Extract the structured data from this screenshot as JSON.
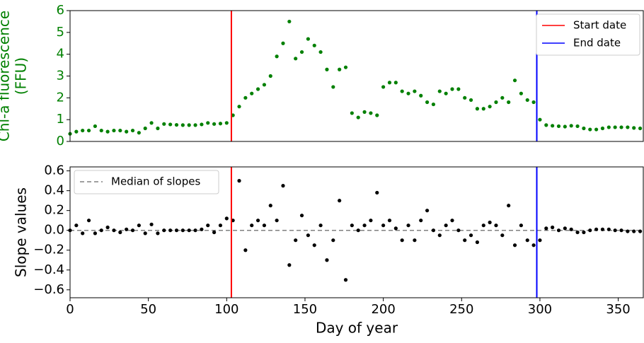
{
  "chart_data": [
    {
      "type": "scatter",
      "y_label": [
        "Chl-a fluorescence",
        "(FFU)"
      ],
      "label_color": "green",
      "xlim": [
        0,
        366
      ],
      "ylim": [
        0,
        6
      ],
      "yticks": [
        0,
        1,
        2,
        3,
        4,
        5,
        6
      ],
      "legend": "upper right",
      "vlines": [
        {
          "name": "Start date",
          "color": "red",
          "value": 103
        },
        {
          "name": "End date",
          "color": "blue",
          "value": 298
        }
      ],
      "x": [
        0,
        4,
        8,
        12,
        16,
        20,
        24,
        28,
        32,
        36,
        40,
        44,
        48,
        52,
        56,
        60,
        64,
        68,
        72,
        76,
        80,
        84,
        88,
        92,
        96,
        100,
        104,
        108,
        112,
        116,
        120,
        124,
        128,
        132,
        136,
        140,
        144,
        148,
        152,
        156,
        160,
        164,
        168,
        172,
        176,
        180,
        184,
        188,
        192,
        196,
        200,
        204,
        208,
        212,
        216,
        220,
        224,
        228,
        232,
        236,
        240,
        244,
        248,
        252,
        256,
        260,
        264,
        268,
        272,
        276,
        280,
        284,
        288,
        292,
        296,
        300,
        304,
        308,
        312,
        316,
        320,
        324,
        328,
        332,
        336,
        340,
        344,
        348,
        352,
        356,
        360,
        364
      ],
      "series": [
        {
          "color": "green",
          "values": [
            0.35,
            0.45,
            0.5,
            0.5,
            0.7,
            0.5,
            0.45,
            0.5,
            0.5,
            0.45,
            0.5,
            0.4,
            0.6,
            0.85,
            0.6,
            0.8,
            0.78,
            0.76,
            0.75,
            0.75,
            0.75,
            0.78,
            0.85,
            0.8,
            0.82,
            0.85,
            1.2,
            1.6,
            2.0,
            2.2,
            2.4,
            2.6,
            3.0,
            3.9,
            4.5,
            5.5,
            3.8,
            4.1,
            4.7,
            4.4,
            4.1,
            3.3,
            2.5,
            3.3,
            3.4,
            1.3,
            1.1,
            1.35,
            1.3,
            1.2,
            2.5,
            2.7,
            2.7,
            2.3,
            2.2,
            2.3,
            2.1,
            1.8,
            1.7,
            2.3,
            2.2,
            2.4,
            2.4,
            2.0,
            1.9,
            1.5,
            1.5,
            1.6,
            1.8,
            2.0,
            1.8,
            2.8,
            2.2,
            1.9,
            1.8,
            1.0,
            0.75,
            0.72,
            0.7,
            0.68,
            0.72,
            0.7,
            0.6,
            0.55,
            0.55,
            0.6,
            0.65,
            0.65,
            0.65,
            0.65,
            0.62,
            0.6
          ]
        }
      ]
    },
    {
      "type": "scatter",
      "y_label": [
        "Slope values"
      ],
      "x_label": "Day of year",
      "xlim": [
        0,
        366
      ],
      "xticks": [
        0,
        50,
        100,
        150,
        200,
        250,
        300,
        350
      ],
      "ylim": [
        -0.68,
        0.64
      ],
      "yticks": [
        {
          "value": -0.6,
          "label": "−0.6"
        },
        {
          "value": -0.4,
          "label": "−0.4"
        },
        {
          "value": -0.2,
          "label": "−0.2"
        },
        {
          "value": 0,
          "label": "0.0"
        },
        0.2,
        0.4,
        0.6
      ],
      "legend": "upper left",
      "vlines": [
        {
          "color": "red",
          "value": 103
        },
        {
          "color": "blue",
          "value": 298
        }
      ],
      "hlines": [
        {
          "name": "Median of slopes",
          "color": "gray",
          "value": 0,
          "style": "dashed"
        }
      ],
      "x": [
        0,
        4,
        8,
        12,
        16,
        20,
        24,
        28,
        32,
        36,
        40,
        44,
        48,
        52,
        56,
        60,
        64,
        68,
        72,
        76,
        80,
        84,
        88,
        92,
        96,
        100,
        104,
        108,
        112,
        116,
        120,
        124,
        128,
        132,
        136,
        140,
        144,
        148,
        152,
        156,
        160,
        164,
        168,
        172,
        176,
        180,
        184,
        188,
        192,
        196,
        200,
        204,
        208,
        212,
        216,
        220,
        224,
        228,
        232,
        236,
        240,
        244,
        248,
        252,
        256,
        260,
        264,
        268,
        272,
        276,
        280,
        284,
        288,
        292,
        296,
        300,
        304,
        308,
        312,
        316,
        320,
        324,
        328,
        332,
        336,
        340,
        344,
        348,
        352,
        356,
        360,
        364
      ],
      "series": [
        {
          "color": "black",
          "values": [
            0.0,
            0.05,
            -0.03,
            0.1,
            -0.03,
            0.0,
            0.03,
            0.0,
            -0.02,
            0.01,
            0.0,
            0.05,
            -0.03,
            0.06,
            -0.03,
            0.0,
            0.0,
            0.0,
            0.0,
            0.0,
            0.0,
            0.01,
            0.05,
            -0.02,
            0.05,
            0.12,
            0.1,
            0.5,
            -0.2,
            0.05,
            0.1,
            0.05,
            0.25,
            0.1,
            0.45,
            -0.35,
            -0.1,
            0.15,
            -0.05,
            -0.15,
            0.05,
            -0.3,
            -0.1,
            0.3,
            -0.5,
            0.05,
            0.0,
            0.05,
            0.1,
            0.38,
            0.05,
            0.1,
            0.02,
            -0.1,
            0.05,
            -0.1,
            0.1,
            0.2,
            0.0,
            -0.05,
            0.05,
            0.1,
            0.0,
            -0.1,
            -0.05,
            -0.12,
            0.05,
            0.08,
            0.05,
            -0.05,
            0.25,
            -0.15,
            0.05,
            -0.1,
            -0.15,
            -0.1,
            0.02,
            0.03,
            0.0,
            0.02,
            0.01,
            -0.02,
            -0.02,
            0.0,
            0.01,
            0.01,
            0.01,
            0.0,
            0.0,
            -0.01,
            -0.01,
            -0.01
          ]
        }
      ]
    }
  ]
}
